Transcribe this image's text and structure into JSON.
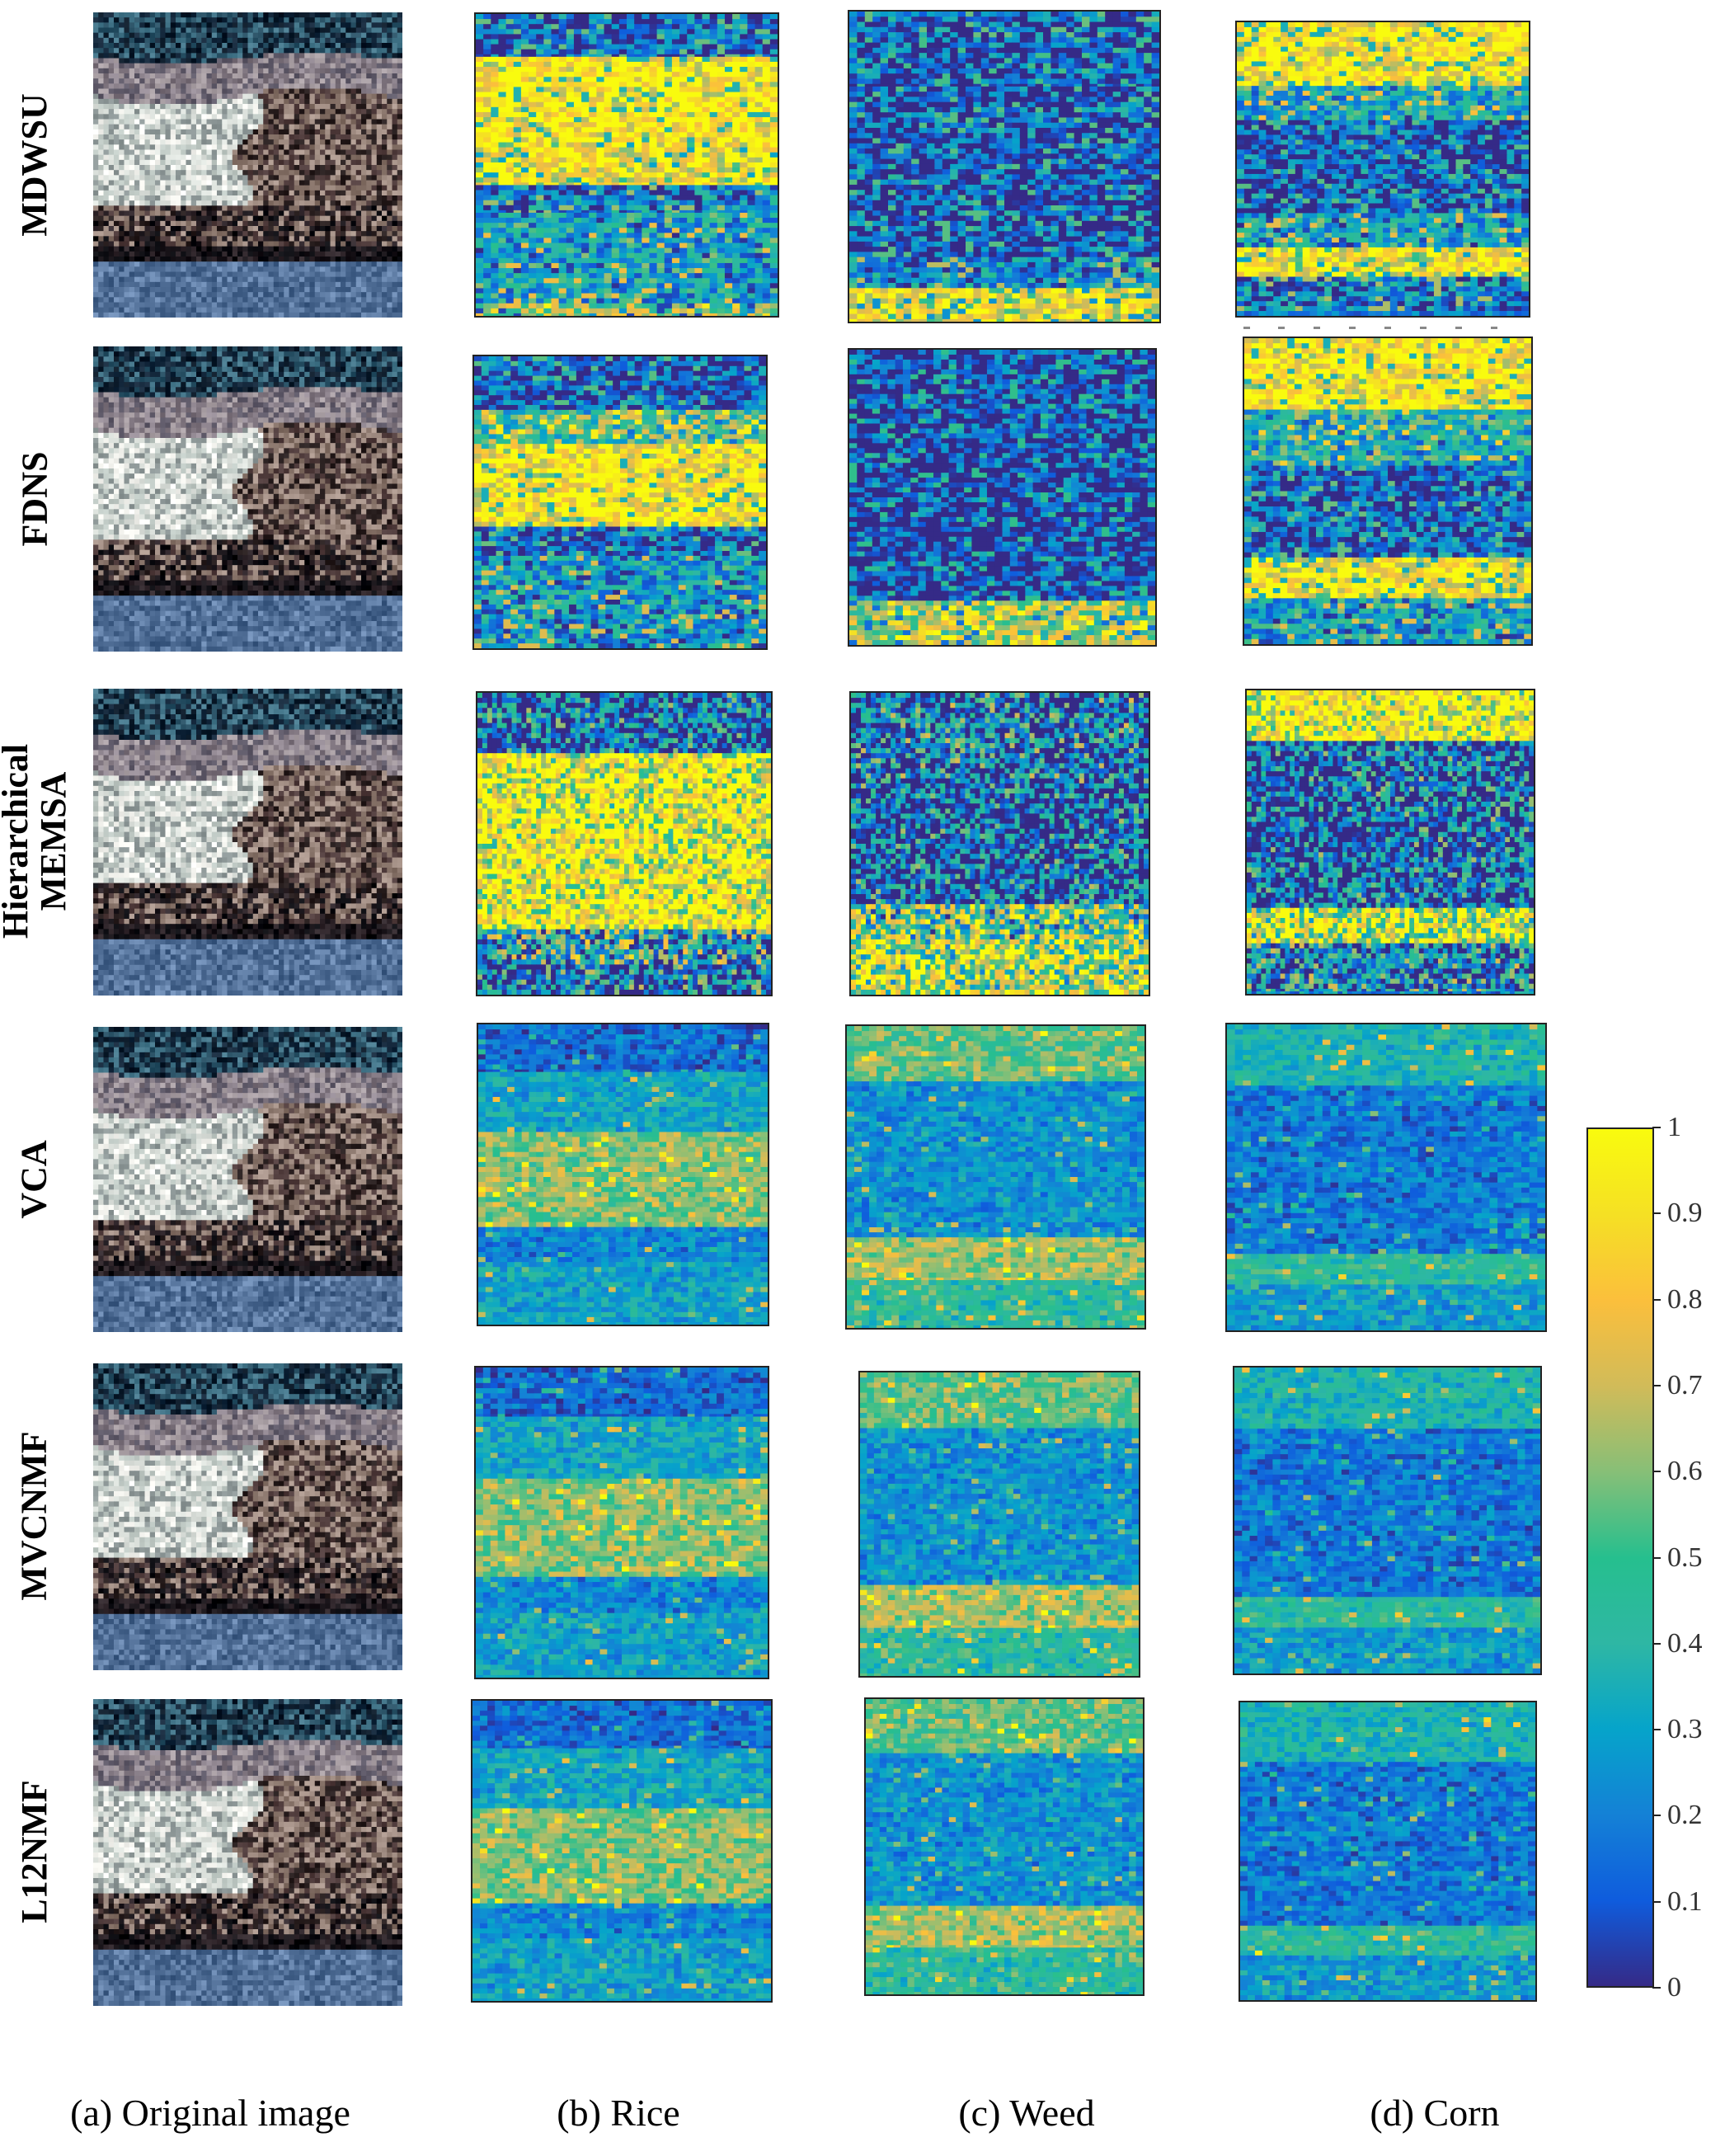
{
  "figure": {
    "rows": [
      {
        "id": "mdwsu",
        "label": "MDWSU"
      },
      {
        "id": "fdns",
        "label": "FDNS"
      },
      {
        "id": "hmemsa",
        "label": "Hierarchical\nMEMSA"
      },
      {
        "id": "vca",
        "label": "VCA"
      },
      {
        "id": "mvcnmf",
        "label": "MVCNMF"
      },
      {
        "id": "l12nmf",
        "label": "L12NMF"
      }
    ],
    "columns": [
      {
        "id": "original",
        "caption": "(a) Original image"
      },
      {
        "id": "rice",
        "caption": "(b) Rice"
      },
      {
        "id": "weed",
        "caption": "(c) Weed"
      },
      {
        "id": "corn",
        "caption": "(d) Corn"
      }
    ],
    "colorbar": {
      "ticks": [
        "0",
        "0.1",
        "0.2",
        "0.3",
        "0.4",
        "0.5",
        "0.6",
        "0.7",
        "0.8",
        "0.9",
        "1"
      ],
      "colors": [
        "#352a87",
        "#0f5cdd",
        "#1481d6",
        "#06a4ca",
        "#2eb7a4",
        "#26bf8e",
        "#87bf77",
        "#d1bb59",
        "#fbbf3c",
        "#f5e024",
        "#f9fb0e"
      ]
    },
    "image_kinds": {
      "original": "rgb-field-scene",
      "map": "parula-abundance-map"
    }
  }
}
